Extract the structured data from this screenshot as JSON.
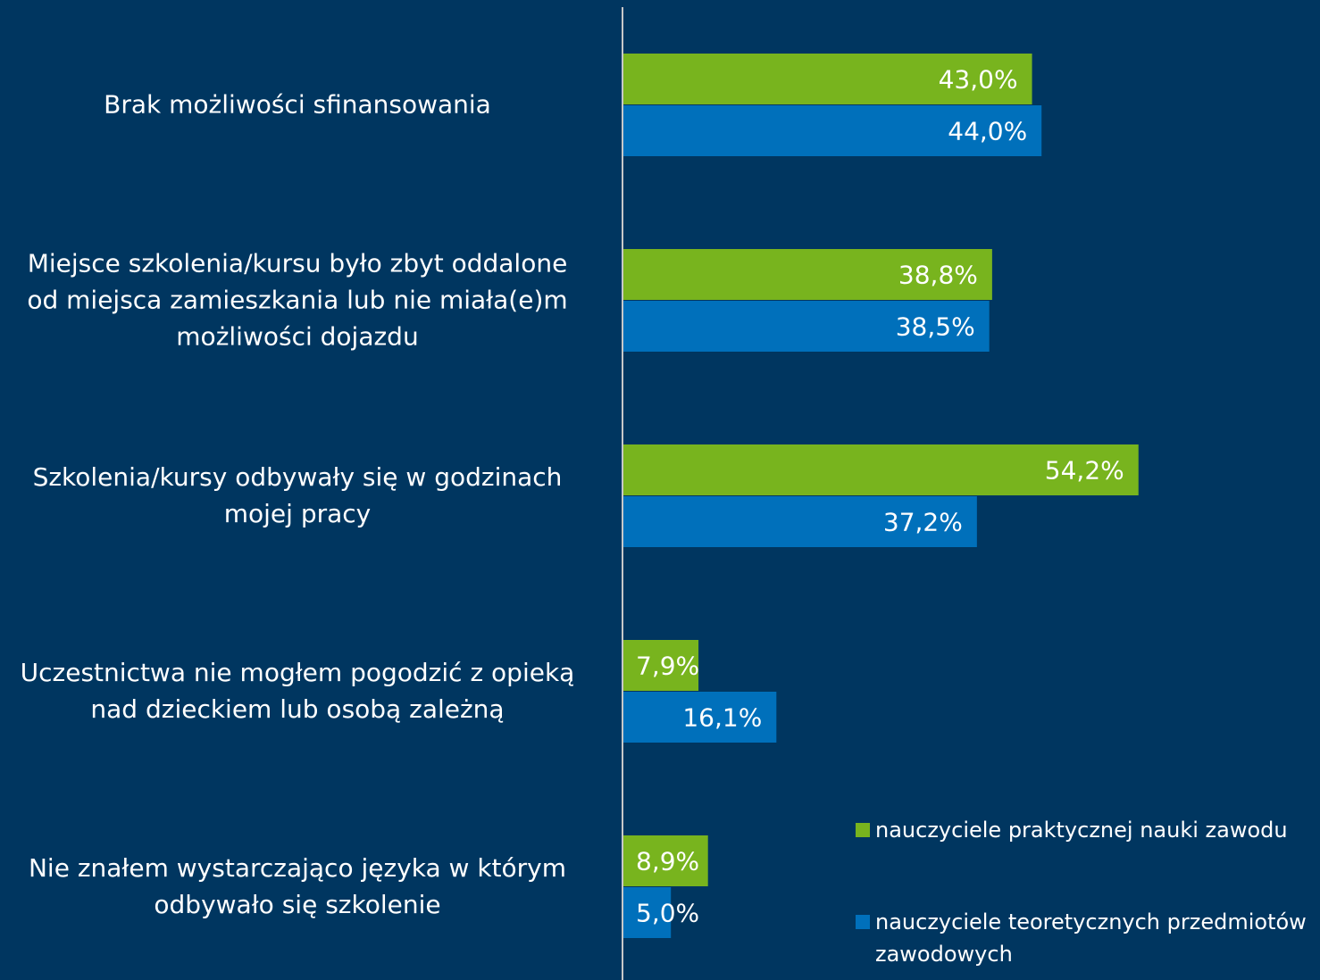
{
  "chart_data": {
    "type": "bar",
    "orientation": "horizontal",
    "categories": [
      "Brak możliwości sfinansowania",
      "Miejsce szkolenia/kursu było zbyt oddalone\nod miejsca zamieszkania lub nie miała(e)m\nmożliwości dojazdu",
      "Szkolenia/kursy odbywały się w godzinach\nmojej pracy",
      "Uczestnictwa nie mogłem pogodzić z opieką\nnad dzieckiem lub osobą zależną",
      "Nie znałem wystarczająco języka w którym\nodbywało się szkolenie"
    ],
    "series": [
      {
        "name": "nauczyciele praktycznej nauki zawodu",
        "color": "#78b41e",
        "values": [
          43.0,
          38.8,
          54.2,
          7.9,
          8.9
        ],
        "value_labels": [
          "43,0%",
          "38,8%",
          "54,2%",
          "7,9%",
          "8,9%"
        ]
      },
      {
        "name": "nauczyciele teoretycznych przedmiotów zawodowych",
        "color": "#0070bb",
        "values": [
          44.0,
          38.5,
          37.2,
          16.1,
          5.0
        ],
        "value_labels": [
          "44,0%",
          "38,5%",
          "37,2%",
          "16,1%",
          "5,0%"
        ]
      }
    ],
    "xlim": [
      0,
      73.3
    ],
    "legend": "lower right"
  }
}
